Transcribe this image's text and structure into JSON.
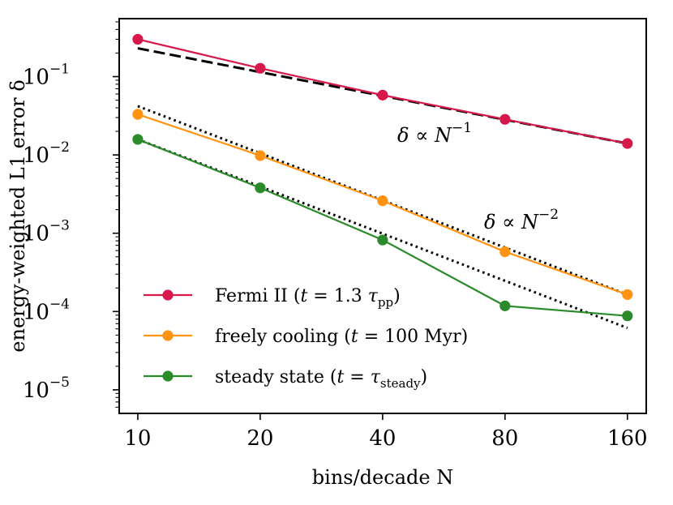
{
  "chart_data": {
    "type": "line",
    "xscale": "log",
    "yscale": "log",
    "x": [
      10,
      20,
      40,
      80,
      160
    ],
    "xlim": [
      9.0,
      178
    ],
    "ylim": [
      5e-06,
      0.55
    ],
    "xlabel": "bins/decade N",
    "ylabel": "energy-weighted L1 error δ",
    "xtick_labels": [
      "10",
      "20",
      "40",
      "80",
      "160"
    ],
    "yticks": [
      {
        "value": 1e-05,
        "base": "10",
        "exp": "−5"
      },
      {
        "value": 0.0001,
        "base": "10",
        "exp": "−4"
      },
      {
        "value": 0.001,
        "base": "10",
        "exp": "−3"
      },
      {
        "value": 0.01,
        "base": "10",
        "exp": "−2"
      },
      {
        "value": 0.1,
        "base": "10",
        "exp": "−1"
      }
    ],
    "series": [
      {
        "name": "Fermi II (t = 1.3 τpp)",
        "color": "#d6194a",
        "values": [
          0.3,
          0.128,
          0.058,
          0.0285,
          0.014
        ]
      },
      {
        "name": "freely cooling (t = 100 Myr)",
        "color": "#ff9312",
        "values": [
          0.033,
          0.0098,
          0.0026,
          0.00058,
          0.000165
        ]
      },
      {
        "name": "steady state (t = τsteady)",
        "color": "#2b8b2b",
        "values": [
          0.0158,
          0.0038,
          0.00082,
          0.000118,
          8.8e-05
        ]
      }
    ],
    "reference_lines": [
      {
        "name": "N^-1 scaling",
        "style": "dashed",
        "color": "#000000",
        "x": [
          10,
          160
        ],
        "y": [
          0.23,
          0.014
        ]
      },
      {
        "name": "N^-2 scaling (upper)",
        "style": "dotted",
        "color": "#000000",
        "x": [
          10,
          160
        ],
        "y": [
          0.042,
          0.000164
        ]
      },
      {
        "name": "N^-2 scaling (lower)",
        "style": "dotted",
        "color": "#000000",
        "x": [
          10,
          160
        ],
        "y": [
          0.0158,
          6.17e-05
        ]
      }
    ],
    "annotations": [
      {
        "id": "n1",
        "base": "δ ∝ N",
        "exp": "−1"
      },
      {
        "id": "n2",
        "base": "δ ∝ N",
        "exp": "−2"
      }
    ],
    "legend": {
      "position": "lower-left",
      "entries": [
        {
          "prefix": "Fermi II (",
          "var": "t",
          "mid": " = 1.3 ",
          "sym": "τ",
          "sub": "pp",
          "suffix": ")"
        },
        {
          "prefix": "freely cooling (",
          "var": "t",
          "mid": " = 100 Myr",
          "sym": "",
          "sub": "",
          "suffix": ")"
        },
        {
          "prefix": "steady state (",
          "var": "t",
          "mid": " = ",
          "sym": "τ",
          "sub": "steady",
          "suffix": ")"
        }
      ]
    }
  }
}
